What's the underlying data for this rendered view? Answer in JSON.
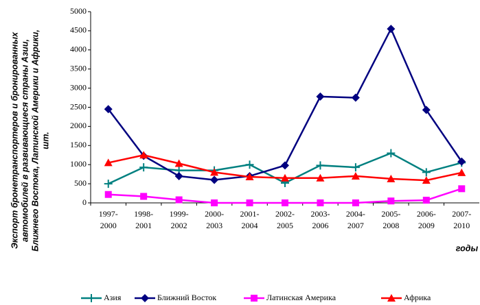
{
  "chart_data": {
    "type": "line",
    "ylabel": [
      "Экспорт бронетранспортеров и бронированных",
      "автомобилей в развивающиеся страны Азии,",
      "Ближнего Востока, Латинской Америки и Африки,",
      "шт."
    ],
    "xlabel": "годы",
    "categories": [
      "1997-2000",
      "1998-2001",
      "1999-2002",
      "2000-2003",
      "2001-2004",
      "2002-2005",
      "2003-2006",
      "2004-2007",
      "2005-2008",
      "2006-2009",
      "2007-2010"
    ],
    "series": [
      {
        "name": "Азия",
        "color": "#008080",
        "marker": "plus",
        "values": [
          500,
          930,
          850,
          850,
          1000,
          520,
          980,
          930,
          1300,
          800,
          1050
        ]
      },
      {
        "name": "Ближний Восток",
        "color": "#000080",
        "marker": "diamond",
        "values": [
          2450,
          1230,
          700,
          600,
          700,
          980,
          2780,
          2750,
          4550,
          2430,
          1080
        ]
      },
      {
        "name": "Латинская Америка",
        "color": "#ff00ff",
        "marker": "square",
        "values": [
          220,
          170,
          80,
          0,
          0,
          0,
          0,
          0,
          50,
          70,
          370
        ]
      },
      {
        "name": "Африка",
        "color": "#ff0000",
        "marker": "triangle",
        "values": [
          1050,
          1250,
          1030,
          800,
          680,
          650,
          650,
          700,
          630,
          590,
          790
        ]
      }
    ],
    "ylim": [
      0,
      5000
    ],
    "yticks": [
      0,
      500,
      1000,
      1500,
      2000,
      2500,
      3000,
      3500,
      4000,
      4500,
      5000
    ],
    "grid": false
  }
}
